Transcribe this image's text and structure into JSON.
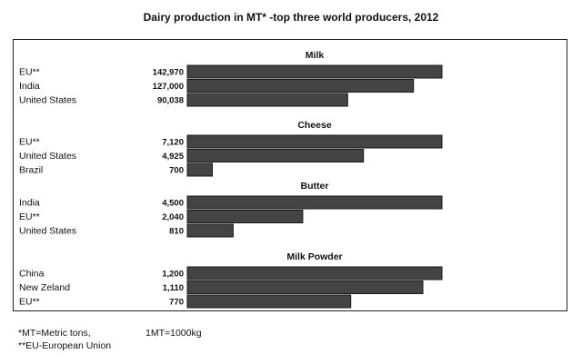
{
  "title": "Dairy production in MT*  -top three world producers, 2012",
  "footnotes": {
    "metric": "*MT=Metric tons,",
    "eu": "**EU-European Union",
    "conversion": "1MT=1000kg"
  },
  "colors": {
    "bar": "#444444",
    "bar_border": "#1a1a1a"
  },
  "chart_data": [
    {
      "type": "bar",
      "title": "Milk",
      "categories": [
        "EU**",
        "India",
        "United States"
      ],
      "values": [
        142970,
        127000,
        90038
      ],
      "value_labels": [
        "142,970",
        "127,000",
        "90,038"
      ]
    },
    {
      "type": "bar",
      "title": "Cheese",
      "categories": [
        "EU**",
        "United States",
        "Brazil"
      ],
      "values": [
        7120,
        4925,
        700
      ],
      "value_labels": [
        "7,120",
        "4,925",
        "700"
      ]
    },
    {
      "type": "bar",
      "title": "Butter",
      "categories": [
        "India",
        "EU**",
        "United States"
      ],
      "values": [
        4500,
        2040,
        810
      ],
      "value_labels": [
        "4,500",
        "2,040",
        "810"
      ]
    },
    {
      "type": "bar",
      "title": "Milk Powder",
      "categories": [
        "China",
        "New Zeland",
        "EU**"
      ],
      "values": [
        1200,
        1110,
        770
      ],
      "value_labels": [
        "1,200",
        "1,110",
        "770"
      ]
    }
  ]
}
